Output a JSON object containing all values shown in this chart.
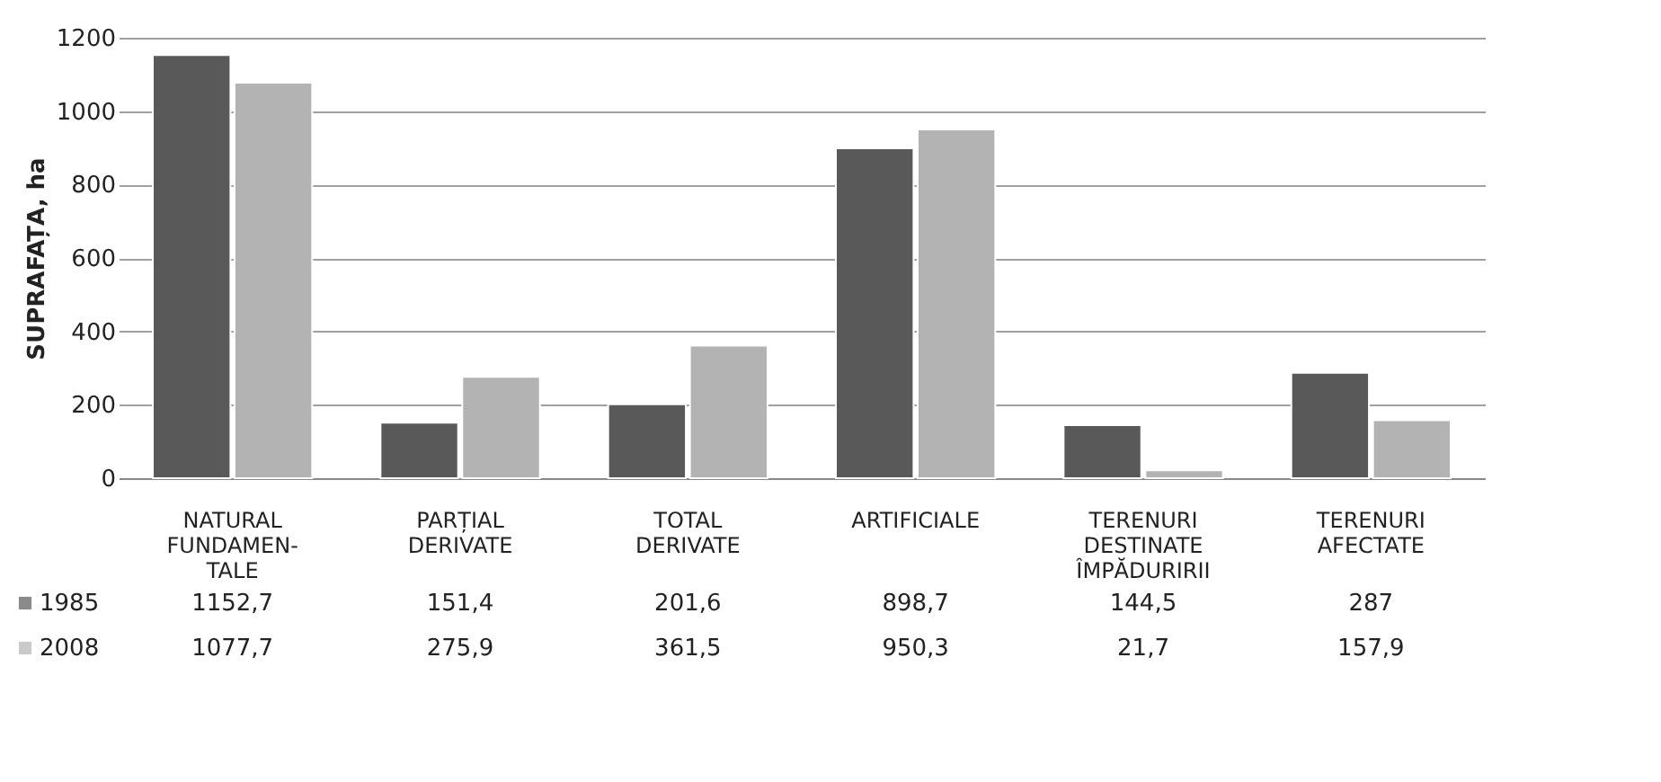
{
  "chart_data": {
    "type": "bar",
    "ylabel": "SUPRAFAȚA, ha",
    "categories": [
      "NATURAL FUNDAMEN-TALE",
      "PARȚIAL DERIVATE",
      "TOTAL DERIVATE",
      "ARTIFICIALE",
      "TERENURI DESTINATE ÎMPĂDURIRII",
      "TERENURI AFECTATE"
    ],
    "series": [
      {
        "name": "1985",
        "color": "#595959",
        "values": [
          1152.7,
          151.4,
          201.6,
          898.7,
          144.5,
          287
        ],
        "value_labels": [
          "1152,7",
          "151,4",
          "201,6",
          "898,7",
          "144,5",
          "287"
        ]
      },
      {
        "name": "2008",
        "color": "#b3b3b3",
        "values": [
          1077.7,
          275.9,
          361.5,
          950.3,
          21.7,
          157.9
        ],
        "value_labels": [
          "1077,7",
          "275,9",
          "361,5",
          "950,3",
          "21,7",
          "157,9"
        ]
      }
    ],
    "ylim": [
      0,
      1200
    ],
    "yticks": [
      0,
      200,
      400,
      600,
      800,
      1000,
      1200
    ],
    "grid": "y",
    "legend": "bottom left"
  }
}
